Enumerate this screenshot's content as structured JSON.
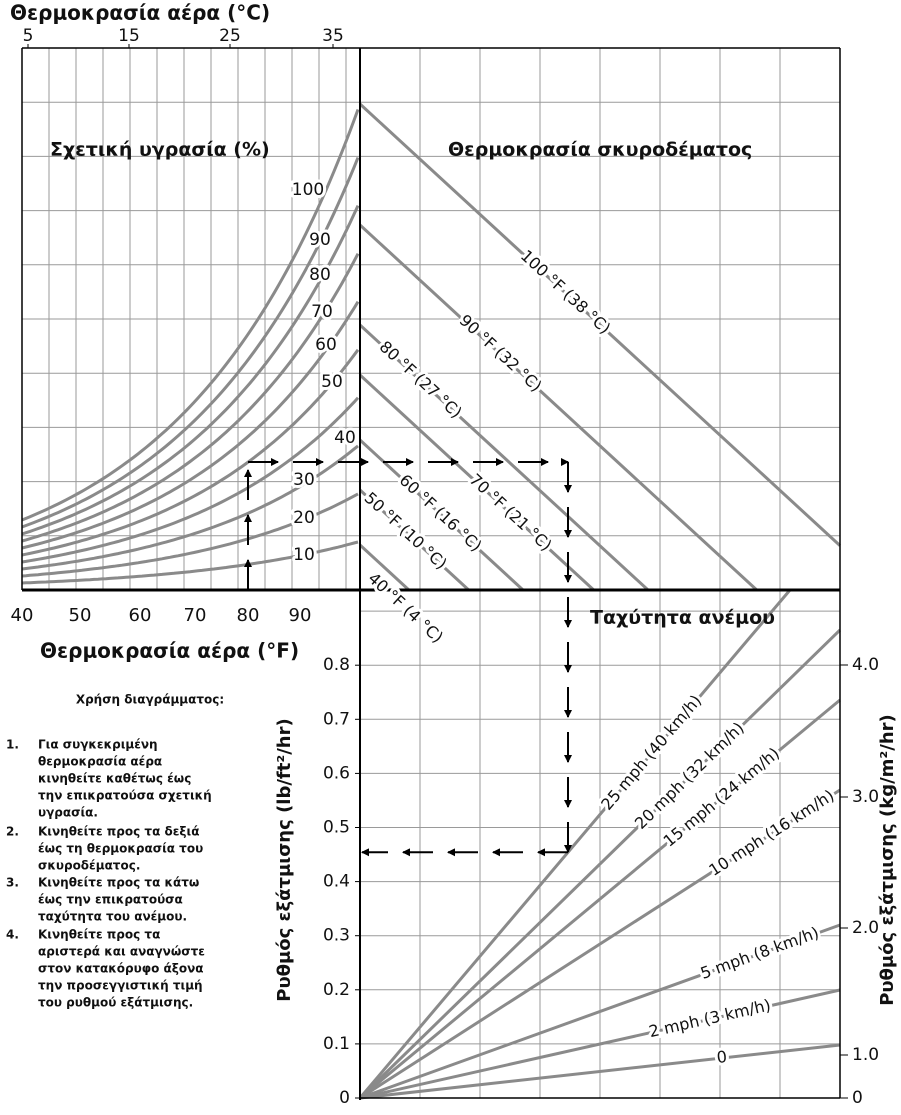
{
  "top_axis": {
    "title": "Θερμοκρασία αέρα (°C)",
    "ticks": [
      "5",
      "15",
      "25",
      "35"
    ]
  },
  "bottom_axis": {
    "title": "Θερμοκρασία αέρα (°F)",
    "ticks": [
      "40",
      "50",
      "60",
      "70",
      "80",
      "90"
    ]
  },
  "humidity": {
    "title": "Σχετική υγρασία (%)",
    "labels": [
      "100",
      "90",
      "80",
      "70",
      "60",
      "50",
      "40",
      "30",
      "20",
      "10"
    ]
  },
  "concrete": {
    "title": "Θερμοκρασία σκυροδέματος",
    "labels": [
      "100 °F (38 °C)",
      "90 °F (32 °C)",
      "80 °F (27 °C)",
      "70 °F (21 °C)",
      "60 °F (16 °C)",
      "50 °F (10 °C)",
      "40 °F (4 °C)"
    ]
  },
  "wind": {
    "title": "Ταχύτητα ανέμου",
    "labels": [
      "25 mph (40 km/h)",
      "20 mph (32 km/h)",
      "15 mph (24 km/h)",
      "10 mph (16 km/h)",
      "5 mph (8 km/h)",
      "2 mph (3 km/h)",
      "0"
    ]
  },
  "left_axis": {
    "title": "Ρυθμός εξάτμισης (lb/ft²/hr)",
    "ticks": [
      "0.8",
      "0.7",
      "0.6",
      "0.5",
      "0.4",
      "0.3",
      "0.2",
      "0.1",
      "0"
    ]
  },
  "right_axis": {
    "title": "Ρυθμός εξάτμισης (kg/m²/hr)",
    "ticks": [
      "4.0",
      "3.0",
      "2.0",
      "1.0",
      "0"
    ]
  },
  "instructions": {
    "title": "Χρήση διαγράμματος:",
    "steps": [
      {
        "number": "1.",
        "lines": [
          "Για συγκεκριμένη",
          "θερμοκρασία αέρα",
          "κινηθείτε καθέτως έως",
          "την επικρατούσα σχετική",
          "υγρασία."
        ]
      },
      {
        "number": "2.",
        "lines": [
          "Κινηθείτε προς τα δεξιά",
          "έως τη θερμοκρασία του",
          "σκυροδέματος."
        ]
      },
      {
        "number": "3.",
        "lines": [
          "Κινηθείτε προς τα κάτω",
          "έως την επικρατούσα",
          "ταχύτητα του ανέμου."
        ]
      },
      {
        "number": "4.",
        "lines": [
          "Κινηθείτε προς τα",
          "αριστερά και αναγνώστε",
          "στον κατακόρυφο άξονα",
          "την προσεγγιστική τιμή",
          "του ρυθμού εξάτμισης."
        ]
      }
    ]
  }
}
